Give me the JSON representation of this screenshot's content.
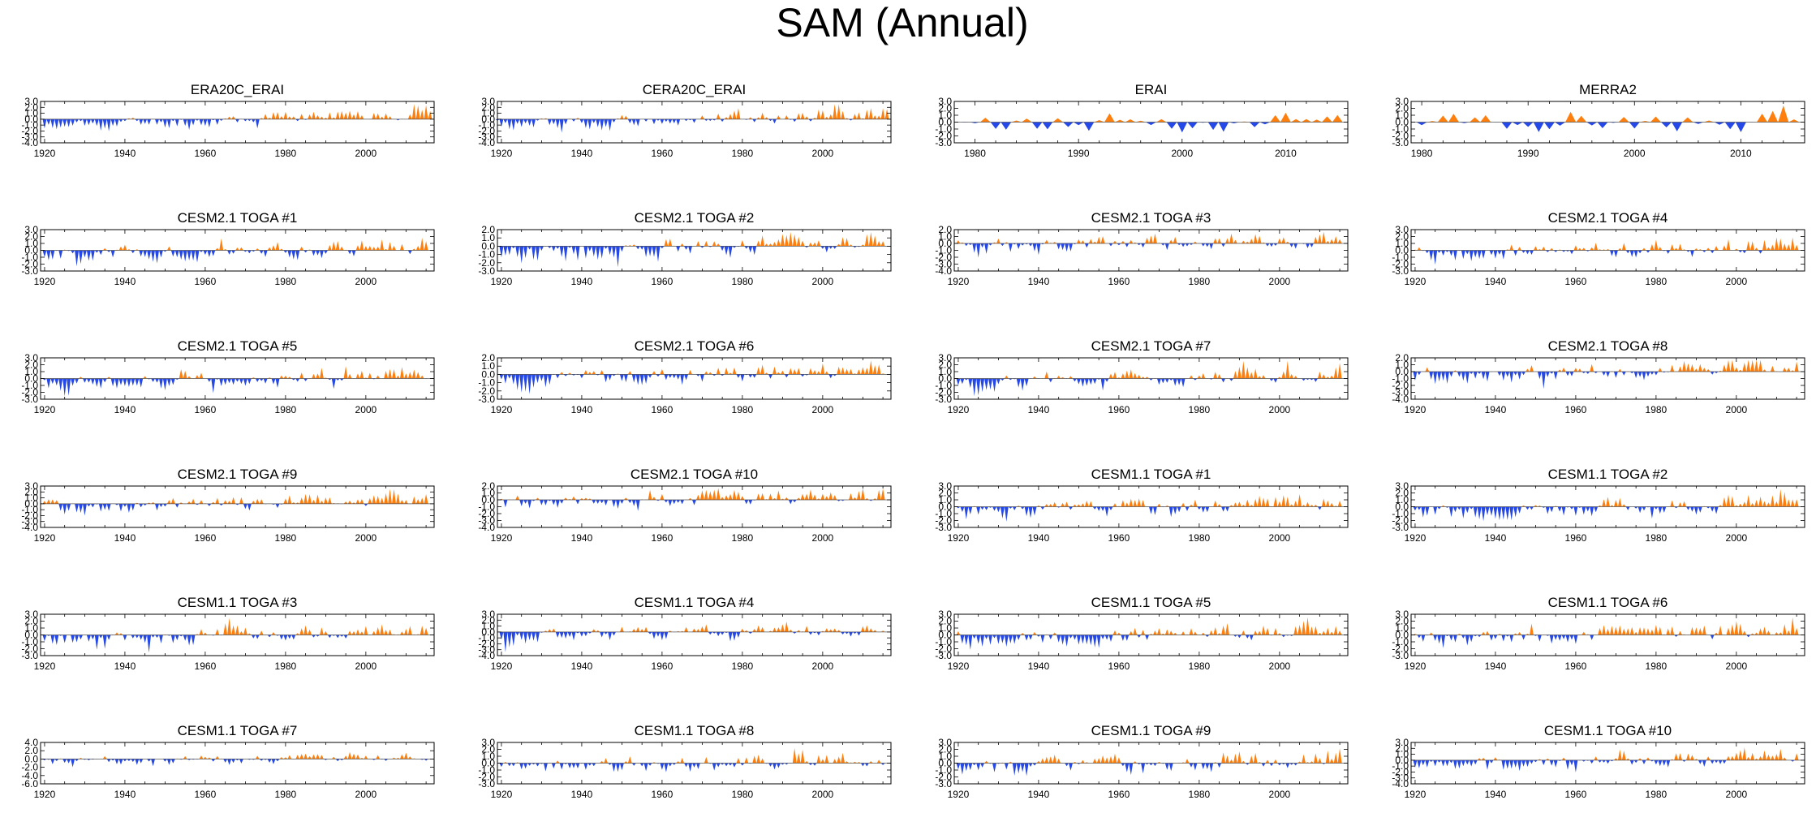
{
  "figure": {
    "title": "SAM (Annual)",
    "colors": {
      "positive": "#ff7f0e",
      "negative": "#2548e8",
      "frame": "#000000",
      "zero_line": "#555555"
    }
  },
  "chart_data": [
    {
      "type": "area",
      "title": "ERA20C_ERAI",
      "xlim": [
        1919,
        2017
      ],
      "ylim": [
        -4.0,
        3.0
      ],
      "xticks": [
        "1920",
        "1940",
        "1960",
        "1980",
        "2000"
      ],
      "yticks": [
        "3.0",
        "2.0",
        "1.0",
        "0.0",
        "-1.0",
        "-2.0",
        "-3.0",
        "-4.0"
      ],
      "seed": 11,
      "start": 1919,
      "end": 2016,
      "trend": 1.0,
      "amp": 0.8
    },
    {
      "type": "area",
      "title": "CERA20C_ERAI",
      "xlim": [
        1919,
        2017
      ],
      "ylim": [
        -4.0,
        3.0
      ],
      "xticks": [
        "1920",
        "1940",
        "1960",
        "1980",
        "2000"
      ],
      "yticks": [
        "3.0",
        "2.0",
        "1.0",
        "0.0",
        "-1.0",
        "-2.0",
        "-3.0",
        "-4.0"
      ],
      "seed": 12,
      "start": 1919,
      "end": 2016,
      "trend": 1.0,
      "amp": 0.9
    },
    {
      "type": "area",
      "title": "ERAI",
      "xlim": [
        1978,
        2016
      ],
      "ylim": [
        -3.0,
        3.0
      ],
      "xticks": [
        "1980",
        "1990",
        "2000",
        "2010"
      ],
      "yticks": [
        "3.0",
        "2.0",
        "1.0",
        "0.0",
        "-1.0",
        "-2.0",
        "-3.0"
      ],
      "seed": 13,
      "start": 1979,
      "end": 2015,
      "trend": 0.3,
      "amp": 1.0
    },
    {
      "type": "area",
      "title": "MERRA2",
      "xlim": [
        1979,
        2016
      ],
      "ylim": [
        -3.0,
        3.0
      ],
      "xticks": [
        "1980",
        "1990",
        "2000",
        "2010"
      ],
      "yticks": [
        "3.0",
        "2.0",
        "1.0",
        "0.0",
        "-1.0",
        "-2.0",
        "-3.0"
      ],
      "seed": 14,
      "start": 1980,
      "end": 2015,
      "trend": 0.3,
      "amp": 1.0
    },
    {
      "type": "area",
      "title": "CESM2.1 TOGA #1",
      "xlim": [
        1919,
        2017
      ],
      "ylim": [
        -3.0,
        3.0
      ],
      "xticks": [
        "1920",
        "1940",
        "1960",
        "1980",
        "2000"
      ],
      "yticks": [
        "3.0",
        "2.0",
        "1.0",
        "0.0",
        "-1.0",
        "-2.0",
        "-3.0"
      ],
      "seed": 21,
      "start": 1920,
      "end": 2015,
      "trend": 0.6,
      "amp": 0.9
    },
    {
      "type": "area",
      "title": "CESM2.1 TOGA #2",
      "xlim": [
        1919,
        2017
      ],
      "ylim": [
        -3.0,
        2.0
      ],
      "xticks": [
        "1920",
        "1940",
        "1960",
        "1980",
        "2000"
      ],
      "yticks": [
        "2.0",
        "1.0",
        "0.0",
        "-1.0",
        "-2.0",
        "-3.0"
      ],
      "seed": 22,
      "start": 1920,
      "end": 2015,
      "trend": 0.6,
      "amp": 0.9
    },
    {
      "type": "area",
      "title": "CESM2.1 TOGA #3",
      "xlim": [
        1919,
        2017
      ],
      "ylim": [
        -4.0,
        2.0
      ],
      "xticks": [
        "1920",
        "1940",
        "1960",
        "1980",
        "2000"
      ],
      "yticks": [
        "2.0",
        "1.0",
        "0.0",
        "-1.0",
        "-2.0",
        "-3.0",
        "-4.0"
      ],
      "seed": 23,
      "start": 1920,
      "end": 2015,
      "trend": 0.6,
      "amp": 0.9
    },
    {
      "type": "area",
      "title": "CESM2.1 TOGA #4",
      "xlim": [
        1919,
        2017
      ],
      "ylim": [
        -3.0,
        3.0
      ],
      "xticks": [
        "1920",
        "1940",
        "1960",
        "1980",
        "2000"
      ],
      "yticks": [
        "3.0",
        "2.0",
        "1.0",
        "0.0",
        "-1.0",
        "-2.0",
        "-3.0"
      ],
      "seed": 24,
      "start": 1920,
      "end": 2015,
      "trend": 0.6,
      "amp": 0.9
    },
    {
      "type": "area",
      "title": "CESM2.1 TOGA #5",
      "xlim": [
        1919,
        2017
      ],
      "ylim": [
        -3.0,
        3.0
      ],
      "xticks": [
        "1920",
        "1940",
        "1960",
        "1980",
        "2000"
      ],
      "yticks": [
        "3.0",
        "2.0",
        "1.0",
        "0.0",
        "-1.0",
        "-2.0",
        "-3.0"
      ],
      "seed": 25,
      "start": 1920,
      "end": 2015,
      "trend": 0.6,
      "amp": 0.9
    },
    {
      "type": "area",
      "title": "CESM2.1 TOGA #6",
      "xlim": [
        1919,
        2017
      ],
      "ylim": [
        -3.0,
        2.0
      ],
      "xticks": [
        "1920",
        "1940",
        "1960",
        "1980",
        "2000"
      ],
      "yticks": [
        "2.0",
        "1.0",
        "0.0",
        "-1.0",
        "-2.0",
        "-3.0"
      ],
      "seed": 26,
      "start": 1920,
      "end": 2015,
      "trend": 0.6,
      "amp": 0.9
    },
    {
      "type": "area",
      "title": "CESM2.1 TOGA #7",
      "xlim": [
        1919,
        2017
      ],
      "ylim": [
        -3.0,
        3.0
      ],
      "xticks": [
        "1920",
        "1940",
        "1960",
        "1980",
        "2000"
      ],
      "yticks": [
        "3.0",
        "2.0",
        "1.0",
        "0.0",
        "-1.0",
        "-2.0",
        "-3.0"
      ],
      "seed": 27,
      "start": 1920,
      "end": 2015,
      "trend": 0.6,
      "amp": 0.9
    },
    {
      "type": "area",
      "title": "CESM2.1 TOGA #8",
      "xlim": [
        1919,
        2017
      ],
      "ylim": [
        -4.0,
        2.0
      ],
      "xticks": [
        "1920",
        "1940",
        "1960",
        "1980",
        "2000"
      ],
      "yticks": [
        "2.0",
        "1.0",
        "0.0",
        "-1.0",
        "-2.0",
        "-3.0",
        "-4.0"
      ],
      "seed": 28,
      "start": 1920,
      "end": 2015,
      "trend": 0.6,
      "amp": 0.9
    },
    {
      "type": "area",
      "title": "CESM2.1 TOGA #9",
      "xlim": [
        1919,
        2017
      ],
      "ylim": [
        -4.0,
        3.0
      ],
      "xticks": [
        "1920",
        "1940",
        "1960",
        "1980",
        "2000"
      ],
      "yticks": [
        "3.0",
        "2.0",
        "1.0",
        "0.0",
        "-1.0",
        "-2.0",
        "-3.0",
        "-4.0"
      ],
      "seed": 29,
      "start": 1920,
      "end": 2015,
      "trend": 0.6,
      "amp": 0.9
    },
    {
      "type": "area",
      "title": "CESM2.1 TOGA #10",
      "xlim": [
        1919,
        2017
      ],
      "ylim": [
        -4.0,
        2.0
      ],
      "xticks": [
        "1920",
        "1940",
        "1960",
        "1980",
        "2000"
      ],
      "yticks": [
        "2.0",
        "1.0",
        "0.0",
        "-1.0",
        "-2.0",
        "-3.0",
        "-4.0"
      ],
      "seed": 30,
      "start": 1920,
      "end": 2015,
      "trend": 0.6,
      "amp": 0.9
    },
    {
      "type": "area",
      "title": "CESM1.1 TOGA #1",
      "xlim": [
        1919,
        2017
      ],
      "ylim": [
        -3.0,
        3.0
      ],
      "xticks": [
        "1920",
        "1940",
        "1960",
        "1980",
        "2000"
      ],
      "yticks": [
        "3.0",
        "2.0",
        "1.0",
        "0.0",
        "-1.0",
        "-2.0",
        "-3.0"
      ],
      "seed": 31,
      "start": 1920,
      "end": 2015,
      "trend": 0.6,
      "amp": 0.9
    },
    {
      "type": "area",
      "title": "CESM1.1 TOGA #2",
      "xlim": [
        1919,
        2017
      ],
      "ylim": [
        -3.0,
        3.0
      ],
      "xticks": [
        "1920",
        "1940",
        "1960",
        "1980",
        "2000"
      ],
      "yticks": [
        "3.0",
        "2.0",
        "1.0",
        "0.0",
        "-1.0",
        "-2.0",
        "-3.0"
      ],
      "seed": 32,
      "start": 1920,
      "end": 2015,
      "trend": 0.6,
      "amp": 0.9
    },
    {
      "type": "area",
      "title": "CESM1.1 TOGA #3",
      "xlim": [
        1919,
        2017
      ],
      "ylim": [
        -3.0,
        3.0
      ],
      "xticks": [
        "1920",
        "1940",
        "1960",
        "1980",
        "2000"
      ],
      "yticks": [
        "3.0",
        "2.0",
        "1.0",
        "0.0",
        "-1.0",
        "-2.0",
        "-3.0"
      ],
      "seed": 33,
      "start": 1920,
      "end": 2015,
      "trend": 0.6,
      "amp": 0.9
    },
    {
      "type": "area",
      "title": "CESM1.1 TOGA #4",
      "xlim": [
        1919,
        2017
      ],
      "ylim": [
        -4.0,
        3.0
      ],
      "xticks": [
        "1920",
        "1940",
        "1960",
        "1980",
        "2000"
      ],
      "yticks": [
        "3.0",
        "2.0",
        "1.0",
        "0.0",
        "-1.0",
        "-2.0",
        "-3.0",
        "-4.0"
      ],
      "seed": 34,
      "start": 1920,
      "end": 2015,
      "trend": 0.6,
      "amp": 0.9
    },
    {
      "type": "area",
      "title": "CESM1.1 TOGA #5",
      "xlim": [
        1919,
        2017
      ],
      "ylim": [
        -3.0,
        3.0
      ],
      "xticks": [
        "1920",
        "1940",
        "1960",
        "1980",
        "2000"
      ],
      "yticks": [
        "3.0",
        "2.0",
        "1.0",
        "0.0",
        "-1.0",
        "-2.0",
        "-3.0"
      ],
      "seed": 35,
      "start": 1920,
      "end": 2015,
      "trend": 0.6,
      "amp": 0.9
    },
    {
      "type": "area",
      "title": "CESM1.1 TOGA #6",
      "xlim": [
        1919,
        2017
      ],
      "ylim": [
        -3.0,
        3.0
      ],
      "xticks": [
        "1920",
        "1940",
        "1960",
        "1980",
        "2000"
      ],
      "yticks": [
        "3.0",
        "2.0",
        "1.0",
        "0.0",
        "-1.0",
        "-2.0",
        "-3.0"
      ],
      "seed": 36,
      "start": 1920,
      "end": 2015,
      "trend": 0.6,
      "amp": 0.9
    },
    {
      "type": "area",
      "title": "CESM1.1 TOGA #7",
      "xlim": [
        1919,
        2017
      ],
      "ylim": [
        -6.0,
        4.0
      ],
      "xticks": [
        "1920",
        "1940",
        "1960",
        "1980",
        "2000"
      ],
      "yticks": [
        "4.0",
        "2.0",
        "0.0",
        "-2.0",
        "-4.0",
        "-6.0"
      ],
      "seed": 37,
      "start": 1920,
      "end": 2015,
      "trend": 0.6,
      "amp": 0.9
    },
    {
      "type": "area",
      "title": "CESM1.1 TOGA #8",
      "xlim": [
        1919,
        2017
      ],
      "ylim": [
        -3.0,
        3.0
      ],
      "xticks": [
        "1920",
        "1940",
        "1960",
        "1980",
        "2000"
      ],
      "yticks": [
        "3.0",
        "2.0",
        "1.0",
        "0.0",
        "-1.0",
        "-2.0",
        "-3.0"
      ],
      "seed": 38,
      "start": 1920,
      "end": 2015,
      "trend": 0.6,
      "amp": 0.9
    },
    {
      "type": "area",
      "title": "CESM1.1 TOGA #9",
      "xlim": [
        1919,
        2017
      ],
      "ylim": [
        -3.0,
        3.0
      ],
      "xticks": [
        "1920",
        "1940",
        "1960",
        "1980",
        "2000"
      ],
      "yticks": [
        "3.0",
        "2.0",
        "1.0",
        "0.0",
        "-1.0",
        "-2.0",
        "-3.0"
      ],
      "seed": 39,
      "start": 1920,
      "end": 2015,
      "trend": 0.6,
      "amp": 0.9
    },
    {
      "type": "area",
      "title": "CESM1.1 TOGA #10",
      "xlim": [
        1919,
        2017
      ],
      "ylim": [
        -4.0,
        3.0
      ],
      "xticks": [
        "1920",
        "1940",
        "1960",
        "1980",
        "2000"
      ],
      "yticks": [
        "3.0",
        "2.0",
        "1.0",
        "0.0",
        "-1.0",
        "-2.0",
        "-3.0",
        "-4.0"
      ],
      "seed": 40,
      "start": 1920,
      "end": 2015,
      "trend": 0.6,
      "amp": 0.9
    }
  ]
}
